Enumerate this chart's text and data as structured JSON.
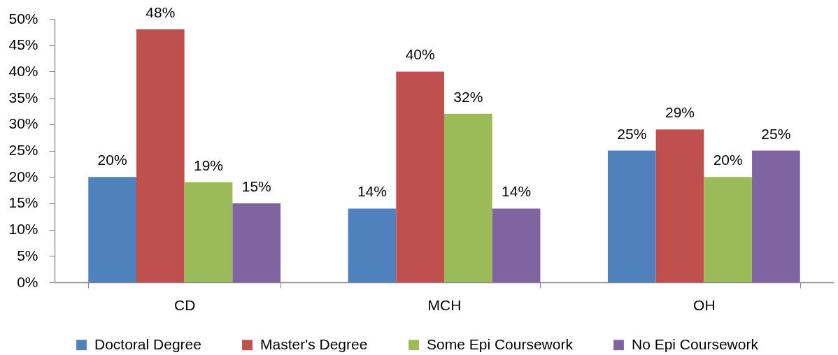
{
  "chart_data": {
    "type": "bar",
    "categories": [
      "CD",
      "MCH",
      "OH"
    ],
    "series": [
      {
        "name": "Doctoral Degree",
        "color": "#4f81bd",
        "values": [
          20,
          14,
          25
        ],
        "value_labels": [
          "20%",
          "14%",
          "25%"
        ]
      },
      {
        "name": "Master's Degree",
        "color": "#c0504d",
        "values": [
          48,
          40,
          29
        ],
        "value_labels": [
          "48%",
          "40%",
          "29%"
        ]
      },
      {
        "name": "Some Epi Coursework",
        "color": "#9bbb59",
        "values": [
          19,
          32,
          20
        ],
        "value_labels": [
          "19%",
          "32%",
          "20%"
        ]
      },
      {
        "name": "No Epi Coursework",
        "color": "#8064a2",
        "values": [
          15,
          14,
          25
        ],
        "value_labels": [
          "15%",
          "14%",
          "25%"
        ]
      }
    ],
    "ylim": [
      0,
      50
    ],
    "yticks": [
      {
        "value": 0,
        "label": "0%"
      },
      {
        "value": 5,
        "label": "5%"
      },
      {
        "value": 10,
        "label": "10%"
      },
      {
        "value": 15,
        "label": "15%"
      },
      {
        "value": 20,
        "label": "20%"
      },
      {
        "value": 25,
        "label": "25%"
      },
      {
        "value": 30,
        "label": "30%"
      },
      {
        "value": 35,
        "label": "35%"
      },
      {
        "value": 40,
        "label": "40%"
      },
      {
        "value": 45,
        "label": "45%"
      },
      {
        "value": 50,
        "label": "50%"
      }
    ],
    "legend": "bottom"
  }
}
